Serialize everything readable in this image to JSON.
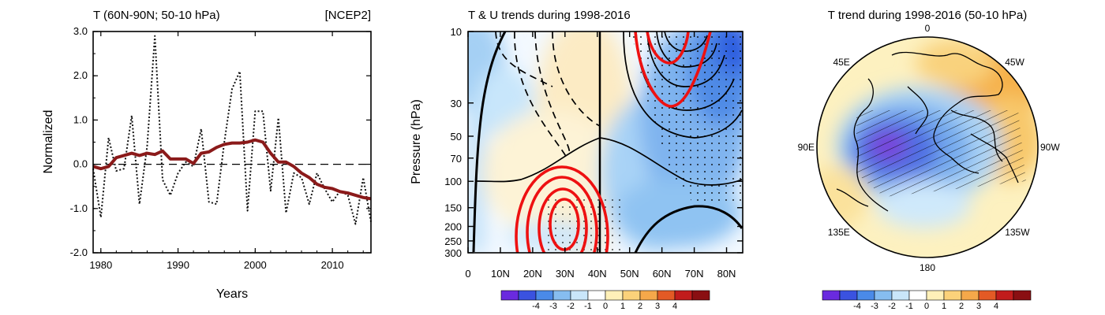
{
  "colors": {
    "obs_line": "#111111",
    "smooth_line": "#8b1a1a",
    "contour": "#000000",
    "wind_contour_red": "#ee1111",
    "warm": "#e8960c",
    "cold": "#2a6cd8",
    "palette": [
      "#6a2adf",
      "#3a52e0",
      "#4a8ae8",
      "#86bdf0",
      "#c9e6fa",
      "#ffffff",
      "#fff0b8",
      "#fbd27a",
      "#f5a84a",
      "#e35a25",
      "#c11c1c",
      "#8a0f12"
    ]
  },
  "chart_data": [
    {
      "type": "line",
      "title": "T (60N-90N; 50-10 hPa)",
      "title_right": "[NCEP2]",
      "xlabel": "Years",
      "ylabel": "Normalized",
      "xlim": [
        1979,
        2015
      ],
      "ylim": [
        -2.0,
        3.0
      ],
      "xticks": [
        1980,
        1990,
        2000,
        2010
      ],
      "yticks": [
        3.0,
        2.0,
        1.0,
        0.0,
        -1.0,
        -2.0
      ],
      "ytick_labels": [
        "3.0",
        "2.0",
        "1.0",
        "0.0",
        "-1.0",
        "-2.0"
      ],
      "zero_line": "dashed",
      "series": [
        {
          "name": "annual",
          "style": "dotted",
          "x": [
            1979,
            1980,
            1981,
            1982,
            1983,
            1984,
            1985,
            1986,
            1987,
            1988,
            1989,
            1990,
            1991,
            1992,
            1993,
            1994,
            1995,
            1996,
            1997,
            1998,
            1999,
            2000,
            2001,
            2002,
            2003,
            2004,
            2005,
            2006,
            2007,
            2008,
            2009,
            2010,
            2011,
            2012,
            2013,
            2014,
            2015
          ],
          "values": [
            -0.1,
            -1.2,
            0.6,
            -0.15,
            -0.1,
            1.1,
            -0.9,
            0.4,
            2.9,
            -0.35,
            -0.7,
            -0.2,
            0.05,
            -0.05,
            0.8,
            -0.85,
            -0.9,
            0.5,
            1.7,
            2.1,
            -1.05,
            1.2,
            1.2,
            -0.6,
            1.05,
            -1.1,
            -0.2,
            -0.3,
            -0.9,
            -0.2,
            -0.55,
            -0.85,
            -0.6,
            -0.7,
            -1.35,
            -0.3,
            -1.3
          ]
        },
        {
          "name": "smoothed",
          "style": "solid",
          "x": [
            1979,
            1980,
            1981,
            1982,
            1983,
            1984,
            1985,
            1986,
            1987,
            1988,
            1989,
            1990,
            1991,
            1992,
            1993,
            1994,
            1995,
            1996,
            1997,
            1998,
            1999,
            2000,
            2001,
            2002,
            2003,
            2004,
            2005,
            2006,
            2007,
            2008,
            2009,
            2010,
            2011,
            2012,
            2013,
            2014,
            2015
          ],
          "values": [
            -0.05,
            -0.1,
            -0.05,
            0.15,
            0.2,
            0.25,
            0.2,
            0.25,
            0.22,
            0.3,
            0.12,
            0.12,
            0.12,
            0.02,
            0.25,
            0.28,
            0.38,
            0.45,
            0.48,
            0.48,
            0.5,
            0.55,
            0.5,
            0.25,
            0.05,
            0.05,
            -0.05,
            -0.2,
            -0.3,
            -0.45,
            -0.52,
            -0.55,
            -0.62,
            -0.65,
            -0.7,
            -0.75,
            -0.78
          ]
        }
      ]
    },
    {
      "type": "heatmap",
      "subtype": "latitude-pressure cross section with contours",
      "title": "T & U trends during 1998-2016",
      "xlabel": "",
      "ylabel": "Pressure (hPa)",
      "xticks": [
        "0",
        "10N",
        "20N",
        "30N",
        "40N",
        "50N",
        "60N",
        "70N",
        "80N"
      ],
      "xlim": [
        0,
        85
      ],
      "yticks": [
        "10",
        "30",
        "50",
        "70",
        "100",
        "150",
        "200",
        "250",
        "300"
      ],
      "ylim": [
        300,
        10
      ],
      "yscale": "log",
      "colorbar_labels": [
        "-4",
        "-3",
        "-2",
        "-1",
        "0",
        "1",
        "2",
        "3",
        "4"
      ],
      "temperature_trend_pattern": "warming 20N-45N; cooling poleward of 45N, strongest near 80N at 10 hPa",
      "zero_line_lat": 40
    },
    {
      "type": "heatmap",
      "subtype": "polar stereographic map",
      "title": "T trend during 1998-2016 (50-10 hPa)",
      "longitude_labels": [
        "0",
        "45W",
        "90W",
        "135W",
        "180",
        "135E",
        "90E",
        "45E"
      ],
      "domain": "Northern Hemisphere polar cap",
      "pattern": "cooling over Arctic / northern Eurasia (minimum about -4); warming over North Atlantic, Europe and north Pacific",
      "colorbar_labels": [
        "-4",
        "-3",
        "-2",
        "-1",
        "0",
        "1",
        "2",
        "3",
        "4"
      ]
    }
  ]
}
